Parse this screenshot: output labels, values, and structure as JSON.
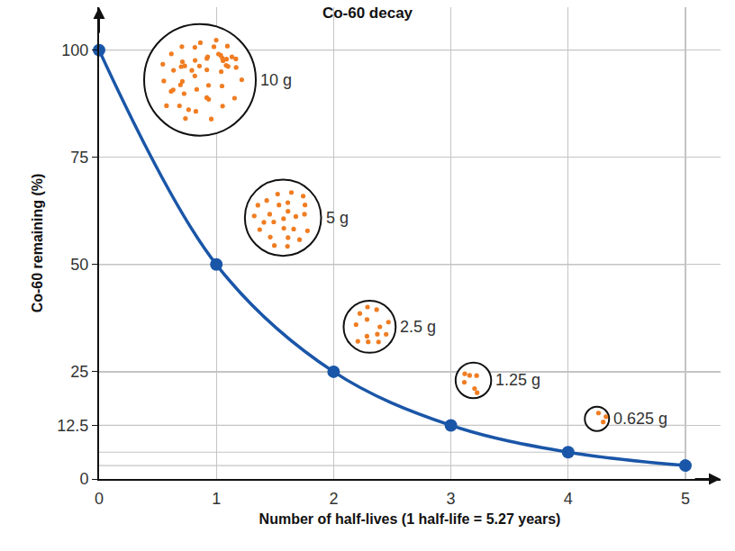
{
  "chart_data": {
    "type": "line",
    "title": "Co-60 decay",
    "x_label": "Number of half-lives (1 half-life = 5.27 years)",
    "y_label": "Co-60 remaining (%)",
    "x": [
      0,
      1,
      2,
      3,
      4,
      5
    ],
    "values": [
      100,
      50,
      25,
      12.5,
      6.25,
      3.125
    ],
    "color": "#1a56a8",
    "marker": "circle",
    "xlim": [
      0,
      5.3
    ],
    "ylim": [
      0,
      110
    ],
    "xticks": [
      0,
      1,
      2,
      3,
      4,
      5
    ],
    "yticks": [
      0,
      12.5,
      25,
      50,
      75,
      100
    ],
    "grid": true,
    "samples": {
      "values": [
        10,
        5,
        2.5,
        1.25,
        0.625
      ],
      "value_labels": [
        "10 g",
        "5 g",
        "2.5 g",
        "1.25 g",
        "0.625 g"
      ],
      "color": "#f07d22"
    }
  }
}
